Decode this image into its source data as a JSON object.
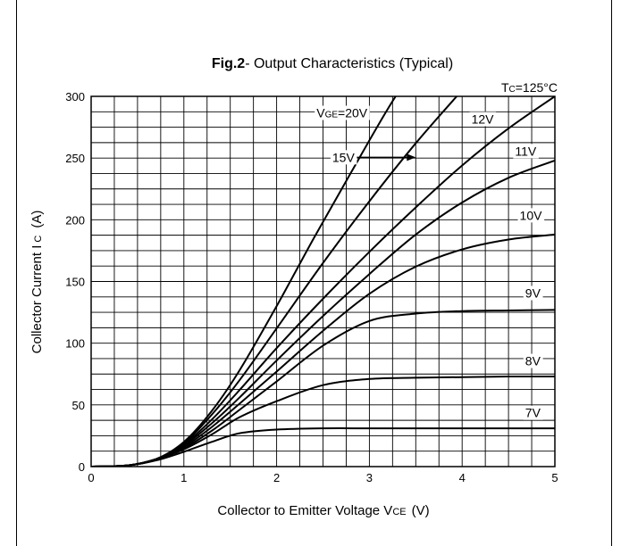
{
  "chart_data": {
    "type": "line",
    "title_bold": "Fig.2",
    "title_rest": "- Output Characteristics (Typical)",
    "xlabel": "Collector to Emitter Voltage V",
    "xlabel_sub": "CE",
    "xlabel_unit": "(V)",
    "ylabel": "Collector Current I",
    "ylabel_sub": "C",
    "ylabel_unit": "(A)",
    "xlim": [
      0,
      5
    ],
    "ylim": [
      0,
      300
    ],
    "xticks": [
      0,
      1,
      2,
      3,
      4,
      5
    ],
    "yticks": [
      0,
      50,
      100,
      150,
      200,
      250,
      300
    ],
    "grid": true,
    "condition": {
      "prefix": "T",
      "sub": "C",
      "value": "=125°C"
    },
    "series": [
      {
        "name": "V",
        "name_sub": "GE",
        "name_rest": "=20V",
        "x": [
          0,
          0.4,
          0.7,
          1.0,
          1.3,
          1.6,
          2.0,
          2.4,
          2.8,
          3.2,
          3.5
        ],
        "y": [
          0,
          1,
          6,
          20,
          45,
          78,
          130,
          185,
          238,
          290,
          325
        ]
      },
      {
        "name": "15V",
        "x": [
          0,
          0.4,
          0.7,
          1.0,
          1.3,
          1.6,
          2.0,
          2.5,
          3.0,
          3.5,
          4.0
        ],
        "y": [
          0,
          1,
          6,
          19,
          42,
          70,
          112,
          165,
          215,
          262,
          305
        ]
      },
      {
        "name": "12V",
        "x": [
          0,
          0.4,
          0.7,
          1.0,
          1.3,
          1.6,
          2.0,
          2.5,
          3.0,
          3.5,
          4.0,
          4.5,
          5.0
        ],
        "y": [
          0,
          1,
          6,
          18,
          38,
          62,
          96,
          136,
          174,
          210,
          244,
          274,
          300
        ]
      },
      {
        "name": "11V",
        "x": [
          0,
          0.4,
          0.7,
          1.0,
          1.3,
          1.6,
          2.0,
          2.5,
          3.0,
          3.5,
          4.0,
          4.5,
          5.0
        ],
        "y": [
          0,
          1,
          6,
          17,
          35,
          56,
          86,
          122,
          156,
          188,
          214,
          234,
          248
        ]
      },
      {
        "name": "10V",
        "x": [
          0,
          0.4,
          0.7,
          1.0,
          1.3,
          1.6,
          2.0,
          2.5,
          3.0,
          3.5,
          4.0,
          4.5,
          5.0
        ],
        "y": [
          0,
          1,
          6,
          16,
          32,
          51,
          77,
          110,
          140,
          162,
          176,
          184,
          188
        ]
      },
      {
        "name": "9V",
        "x": [
          0,
          0.4,
          0.7,
          1.0,
          1.3,
          1.6,
          2.0,
          2.5,
          3.0,
          3.5,
          4.0,
          4.5,
          5.0
        ],
        "y": [
          0,
          1,
          6,
          15,
          29,
          46,
          69,
          98,
          118,
          124,
          126,
          126.5,
          127
        ]
      },
      {
        "name": "8V",
        "x": [
          0,
          0.4,
          0.7,
          1.0,
          1.3,
          1.6,
          2.0,
          2.5,
          3.0,
          3.5,
          4.0,
          4.5,
          5.0
        ],
        "y": [
          0,
          1,
          6,
          14,
          26,
          40,
          53,
          66,
          71,
          72,
          72.5,
          73,
          73
        ]
      },
      {
        "name": "7V",
        "x": [
          0,
          0.4,
          0.7,
          1.0,
          1.3,
          1.6,
          2.0,
          2.5,
          3.0,
          3.5,
          4.0,
          4.5,
          5.0
        ],
        "y": [
          0,
          1,
          5,
          12,
          20,
          27,
          30,
          31,
          31,
          31,
          31,
          31,
          31
        ]
      }
    ],
    "annotations": [
      {
        "text": "V",
        "sub": "GE",
        "rest": "=20V",
        "x": 2.43,
        "y": 283
      },
      {
        "text": "12V",
        "x": 4.1,
        "y": 278
      },
      {
        "text": "15V",
        "x": 2.6,
        "y": 247,
        "arrow_to": [
          3.5,
          253
        ]
      },
      {
        "text": "11V",
        "x": 4.57,
        "y": 252
      },
      {
        "text": "10V",
        "x": 4.62,
        "y": 200
      },
      {
        "text": "9V",
        "x": 4.68,
        "y": 137
      },
      {
        "text": "8V",
        "x": 4.68,
        "y": 82
      },
      {
        "text": "7V",
        "x": 4.68,
        "y": 40
      }
    ]
  }
}
